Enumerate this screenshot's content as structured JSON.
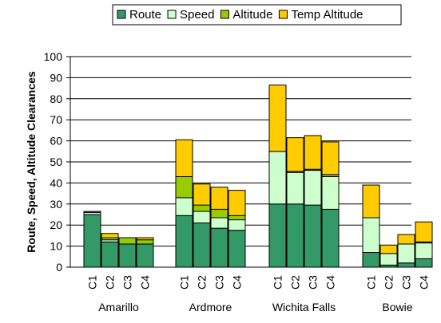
{
  "chart_data": {
    "type": "bar",
    "stacked": true,
    "ylabel": "Route, Speed, Altitude Clearances",
    "xlabel": "",
    "ylim": [
      0,
      100
    ],
    "yticks": [
      0,
      10,
      20,
      30,
      40,
      50,
      60,
      70,
      80,
      90,
      100
    ],
    "grid": true,
    "legend_position": "top",
    "groups": [
      {
        "name": "Amarillo",
        "subcategories": [
          "C1",
          "C2",
          "C3",
          "C4"
        ]
      },
      {
        "name": "Ardmore",
        "subcategories": [
          "C1",
          "C2",
          "C3",
          "C4"
        ]
      },
      {
        "name": "Wichita Falls",
        "subcategories": [
          "C1",
          "C2",
          "C3",
          "C4"
        ]
      },
      {
        "name": "Bowie",
        "subcategories": [
          "C1",
          "C2",
          "C3",
          "C4"
        ]
      }
    ],
    "series": [
      {
        "name": "Route",
        "color": "#339966",
        "values": [
          [
            25,
            12,
            11,
            11
          ],
          [
            24.5,
            21,
            18.5,
            17.5
          ],
          [
            30,
            30,
            29.5,
            27.5
          ],
          [
            7,
            1,
            2,
            4
          ]
        ]
      },
      {
        "name": "Speed",
        "color": "#ccffcc",
        "values": [
          [
            1,
            1,
            0,
            0
          ],
          [
            8.5,
            5.5,
            5,
            5
          ],
          [
            25,
            15,
            16.5,
            15.5
          ],
          [
            16.5,
            5.5,
            9,
            7.5
          ]
        ]
      },
      {
        "name": "Altitude",
        "color": "#99cc00",
        "values": [
          [
            0.5,
            1,
            3,
            2
          ],
          [
            10,
            3,
            4,
            2
          ],
          [
            0,
            0.5,
            0.5,
            1
          ],
          [
            0,
            0,
            0,
            0.5
          ]
        ]
      },
      {
        "name": "Temp Altitude",
        "color": "#ffcc00",
        "values": [
          [
            0,
            2,
            0,
            1
          ],
          [
            17.5,
            10,
            10.5,
            12
          ],
          [
            31.5,
            16,
            16,
            15.5
          ],
          [
            15.5,
            4,
            4.5,
            9.5
          ]
        ]
      }
    ]
  }
}
